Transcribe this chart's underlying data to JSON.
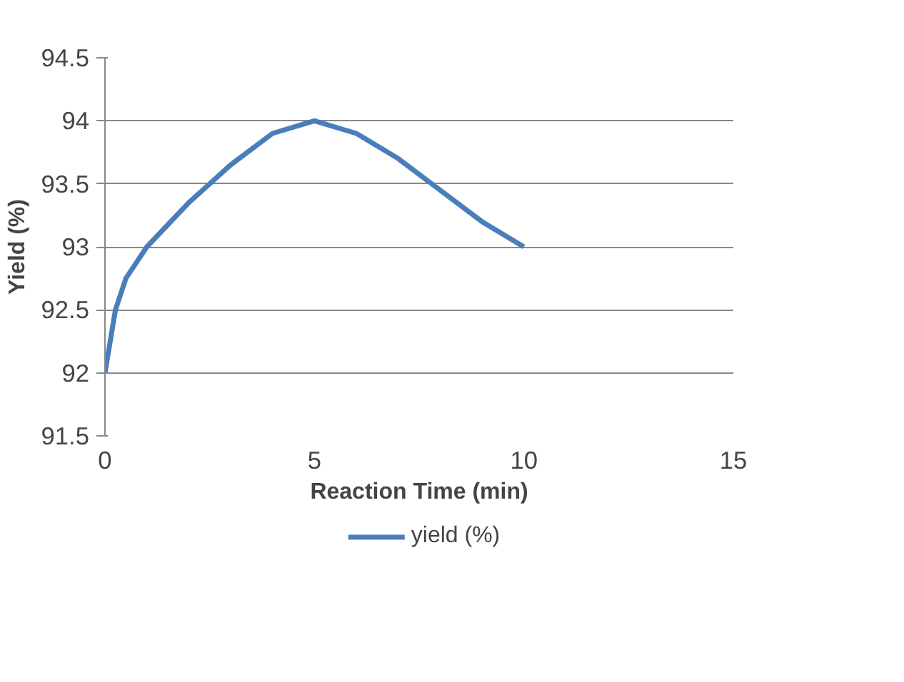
{
  "chart_data": {
    "type": "line",
    "xlabel": "Reaction Time (min)",
    "ylabel": "Yield (%)",
    "x": [
      0,
      0.25,
      0.5,
      1,
      2,
      3,
      4,
      5,
      6,
      7,
      8,
      9,
      10
    ],
    "series": [
      {
        "name": "yield (%)",
        "color": "#4a7ebb",
        "values": [
          92,
          92.5,
          92.75,
          93,
          93.35,
          93.65,
          93.9,
          94,
          93.9,
          93.7,
          93.45,
          93.2,
          93
        ]
      }
    ],
    "xlim": [
      0,
      15
    ],
    "xticks": [
      0,
      5,
      10,
      15
    ],
    "ylim": [
      91.5,
      94.5
    ],
    "yticks": [
      91.5,
      92,
      92.5,
      93,
      93.5,
      94,
      94.5
    ],
    "grid": "y",
    "legend": "bottom",
    "marker": "none",
    "line_style": "solid"
  }
}
